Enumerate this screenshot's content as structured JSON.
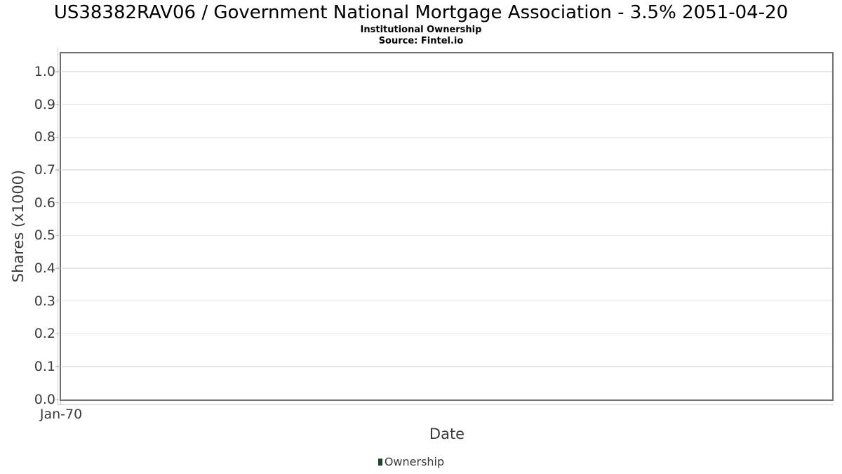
{
  "chart_data": {
    "type": "line",
    "title": "US38382RAV06 / Government National Mortgage Association - 3.5% 2051-04-20",
    "subtitle": "Institutional Ownership",
    "source": "Source: Fintel.io",
    "xlabel": "Date",
    "ylabel": "Shares (x1000)",
    "ylim": [
      0.0,
      1.0
    ],
    "y_tick_labels": [
      "1.0",
      "0.9",
      "0.8",
      "0.7",
      "0.6",
      "0.5",
      "0.4",
      "0.3",
      "0.2",
      "0.1",
      "0.0"
    ],
    "x_tick_labels": [
      "Jan-70"
    ],
    "grid": true,
    "legend_position": "bottom",
    "series": [
      {
        "name": "Ownership",
        "color": "#1e4727",
        "x": [],
        "values": []
      }
    ]
  }
}
